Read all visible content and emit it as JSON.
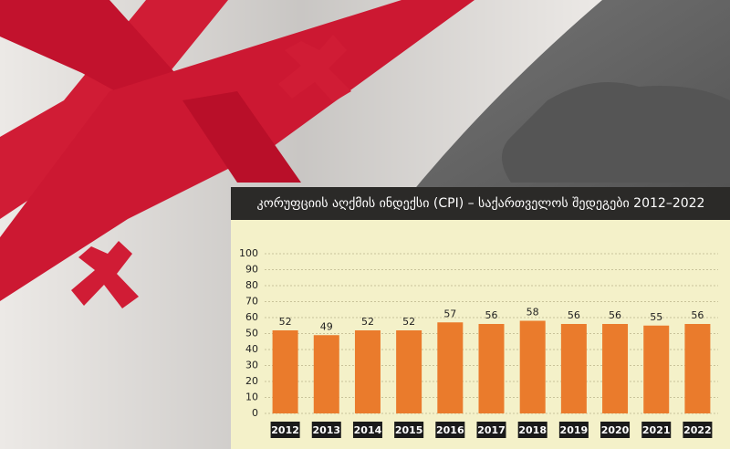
{
  "chart_data": {
    "type": "bar",
    "title": "კორუფციის აღქმის ინდექსი (CPI) – საქართველოს შედეგები 2012–2022",
    "categories": [
      "2012",
      "2013",
      "2014",
      "2015",
      "2016",
      "2017",
      "2018",
      "2019",
      "2020",
      "2021",
      "2022"
    ],
    "values": [
      52,
      49,
      52,
      52,
      57,
      56,
      58,
      56,
      56,
      55,
      56
    ],
    "color": "#ea7b2c",
    "ylim": [
      0,
      100
    ],
    "yticks": [
      0,
      10,
      20,
      30,
      40,
      50,
      60,
      70,
      80,
      90,
      100
    ],
    "grid": true
  }
}
